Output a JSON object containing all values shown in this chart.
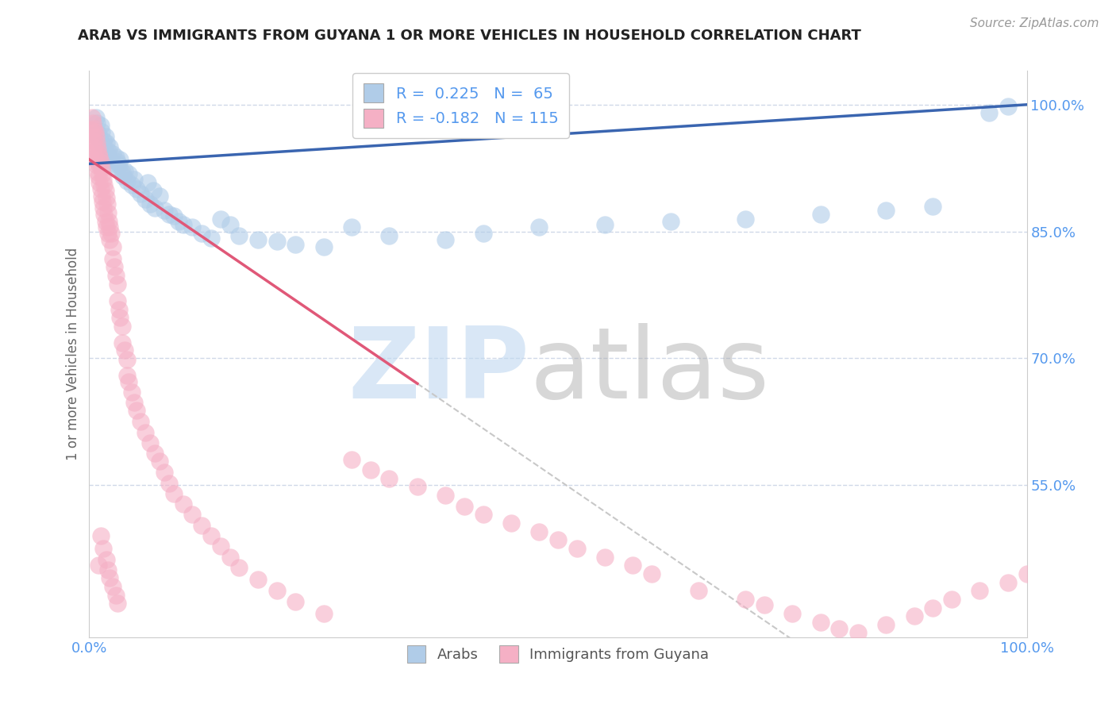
{
  "title": "ARAB VS IMMIGRANTS FROM GUYANA 1 OR MORE VEHICLES IN HOUSEHOLD CORRELATION CHART",
  "source": "Source: ZipAtlas.com",
  "ylabel": "1 or more Vehicles in Household",
  "ytick_labels": [
    "100.0%",
    "85.0%",
    "70.0%",
    "55.0%"
  ],
  "ytick_values": [
    1.0,
    0.85,
    0.7,
    0.55
  ],
  "xtick_labels": [
    "0.0%",
    "100.0%"
  ],
  "xtick_values": [
    0.0,
    1.0
  ],
  "xlim": [
    0.0,
    1.0
  ],
  "ylim": [
    0.37,
    1.04
  ],
  "legend_arab_text": "R =  0.225   N =  65",
  "legend_guyana_text": "R = -0.182   N = 115",
  "arab_color": "#b0cce8",
  "guyana_color": "#f5b0c5",
  "arab_line_color": "#3a65b0",
  "guyana_line_color": "#e05878",
  "guyana_dash_color": "#c8c8c8",
  "zip_color": "#c0d8f0",
  "atlas_color": "#a8a8a8",
  "background": "#ffffff",
  "grid_color": "#d0d8e8",
  "axis_tick_color": "#5599ee",
  "ylabel_color": "#666666",
  "title_color": "#222222",
  "source_color": "#999999",
  "legend_border_color": "#cccccc",
  "spine_color": "#cccccc",
  "bottom_legend_label1": "Arabs",
  "bottom_legend_label2": "Immigrants from Guyana",
  "arab_x": [
    0.005,
    0.007,
    0.008,
    0.01,
    0.01,
    0.012,
    0.013,
    0.015,
    0.015,
    0.017,
    0.018,
    0.02,
    0.02,
    0.022,
    0.022,
    0.025,
    0.025,
    0.028,
    0.03,
    0.03,
    0.032,
    0.033,
    0.035,
    0.036,
    0.038,
    0.04,
    0.042,
    0.045,
    0.048,
    0.05,
    0.055,
    0.06,
    0.062,
    0.065,
    0.068,
    0.07,
    0.075,
    0.08,
    0.085,
    0.09,
    0.095,
    0.1,
    0.11,
    0.12,
    0.13,
    0.14,
    0.15,
    0.16,
    0.18,
    0.2,
    0.22,
    0.25,
    0.28,
    0.32,
    0.38,
    0.42,
    0.48,
    0.55,
    0.62,
    0.7,
    0.78,
    0.85,
    0.9,
    0.96,
    0.98
  ],
  "arab_y": [
    0.97,
    0.985,
    0.978,
    0.965,
    0.96,
    0.975,
    0.968,
    0.958,
    0.952,
    0.962,
    0.955,
    0.945,
    0.94,
    0.95,
    0.935,
    0.942,
    0.93,
    0.938,
    0.925,
    0.932,
    0.928,
    0.935,
    0.92,
    0.915,
    0.922,
    0.91,
    0.918,
    0.905,
    0.912,
    0.9,
    0.895,
    0.888,
    0.908,
    0.882,
    0.898,
    0.878,
    0.892,
    0.875,
    0.87,
    0.868,
    0.862,
    0.858,
    0.855,
    0.848,
    0.842,
    0.865,
    0.858,
    0.845,
    0.84,
    0.838,
    0.835,
    0.832,
    0.855,
    0.845,
    0.84,
    0.848,
    0.855,
    0.858,
    0.862,
    0.865,
    0.87,
    0.875,
    0.88,
    0.99,
    0.998
  ],
  "guyana_x": [
    0.002,
    0.003,
    0.003,
    0.004,
    0.004,
    0.005,
    0.005,
    0.005,
    0.006,
    0.006,
    0.007,
    0.007,
    0.008,
    0.008,
    0.009,
    0.009,
    0.01,
    0.01,
    0.01,
    0.011,
    0.011,
    0.012,
    0.012,
    0.013,
    0.013,
    0.014,
    0.014,
    0.015,
    0.015,
    0.016,
    0.016,
    0.017,
    0.017,
    0.018,
    0.018,
    0.019,
    0.02,
    0.02,
    0.021,
    0.022,
    0.022,
    0.023,
    0.025,
    0.025,
    0.027,
    0.028,
    0.03,
    0.03,
    0.032,
    0.033,
    0.035,
    0.035,
    0.038,
    0.04,
    0.04,
    0.042,
    0.045,
    0.048,
    0.05,
    0.055,
    0.06,
    0.065,
    0.07,
    0.075,
    0.08,
    0.085,
    0.09,
    0.1,
    0.11,
    0.12,
    0.13,
    0.14,
    0.15,
    0.16,
    0.18,
    0.2,
    0.22,
    0.25,
    0.28,
    0.3,
    0.32,
    0.35,
    0.38,
    0.4,
    0.42,
    0.45,
    0.48,
    0.5,
    0.52,
    0.55,
    0.58,
    0.6,
    0.65,
    0.7,
    0.72,
    0.75,
    0.78,
    0.8,
    0.82,
    0.85,
    0.88,
    0.9,
    0.92,
    0.95,
    0.98,
    1.0,
    0.01,
    0.012,
    0.015,
    0.018,
    0.02,
    0.022,
    0.025,
    0.028,
    0.03
  ],
  "guyana_y": [
    0.97,
    0.985,
    0.965,
    0.978,
    0.958,
    0.972,
    0.95,
    0.94,
    0.968,
    0.945,
    0.962,
    0.935,
    0.955,
    0.928,
    0.948,
    0.92,
    0.942,
    0.93,
    0.915,
    0.938,
    0.908,
    0.932,
    0.9,
    0.925,
    0.892,
    0.918,
    0.885,
    0.912,
    0.878,
    0.905,
    0.87,
    0.898,
    0.862,
    0.89,
    0.855,
    0.882,
    0.872,
    0.848,
    0.862,
    0.855,
    0.84,
    0.848,
    0.832,
    0.818,
    0.808,
    0.798,
    0.788,
    0.768,
    0.758,
    0.748,
    0.738,
    0.718,
    0.71,
    0.698,
    0.68,
    0.672,
    0.66,
    0.648,
    0.638,
    0.625,
    0.612,
    0.6,
    0.588,
    0.578,
    0.565,
    0.552,
    0.54,
    0.528,
    0.515,
    0.502,
    0.49,
    0.478,
    0.465,
    0.452,
    0.438,
    0.425,
    0.412,
    0.398,
    0.58,
    0.568,
    0.558,
    0.548,
    0.538,
    0.525,
    0.515,
    0.505,
    0.495,
    0.485,
    0.475,
    0.465,
    0.455,
    0.445,
    0.425,
    0.415,
    0.408,
    0.398,
    0.388,
    0.38,
    0.375,
    0.385,
    0.395,
    0.405,
    0.415,
    0.425,
    0.435,
    0.445,
    0.455,
    0.49,
    0.475,
    0.462,
    0.45,
    0.44,
    0.43,
    0.42,
    0.41
  ]
}
